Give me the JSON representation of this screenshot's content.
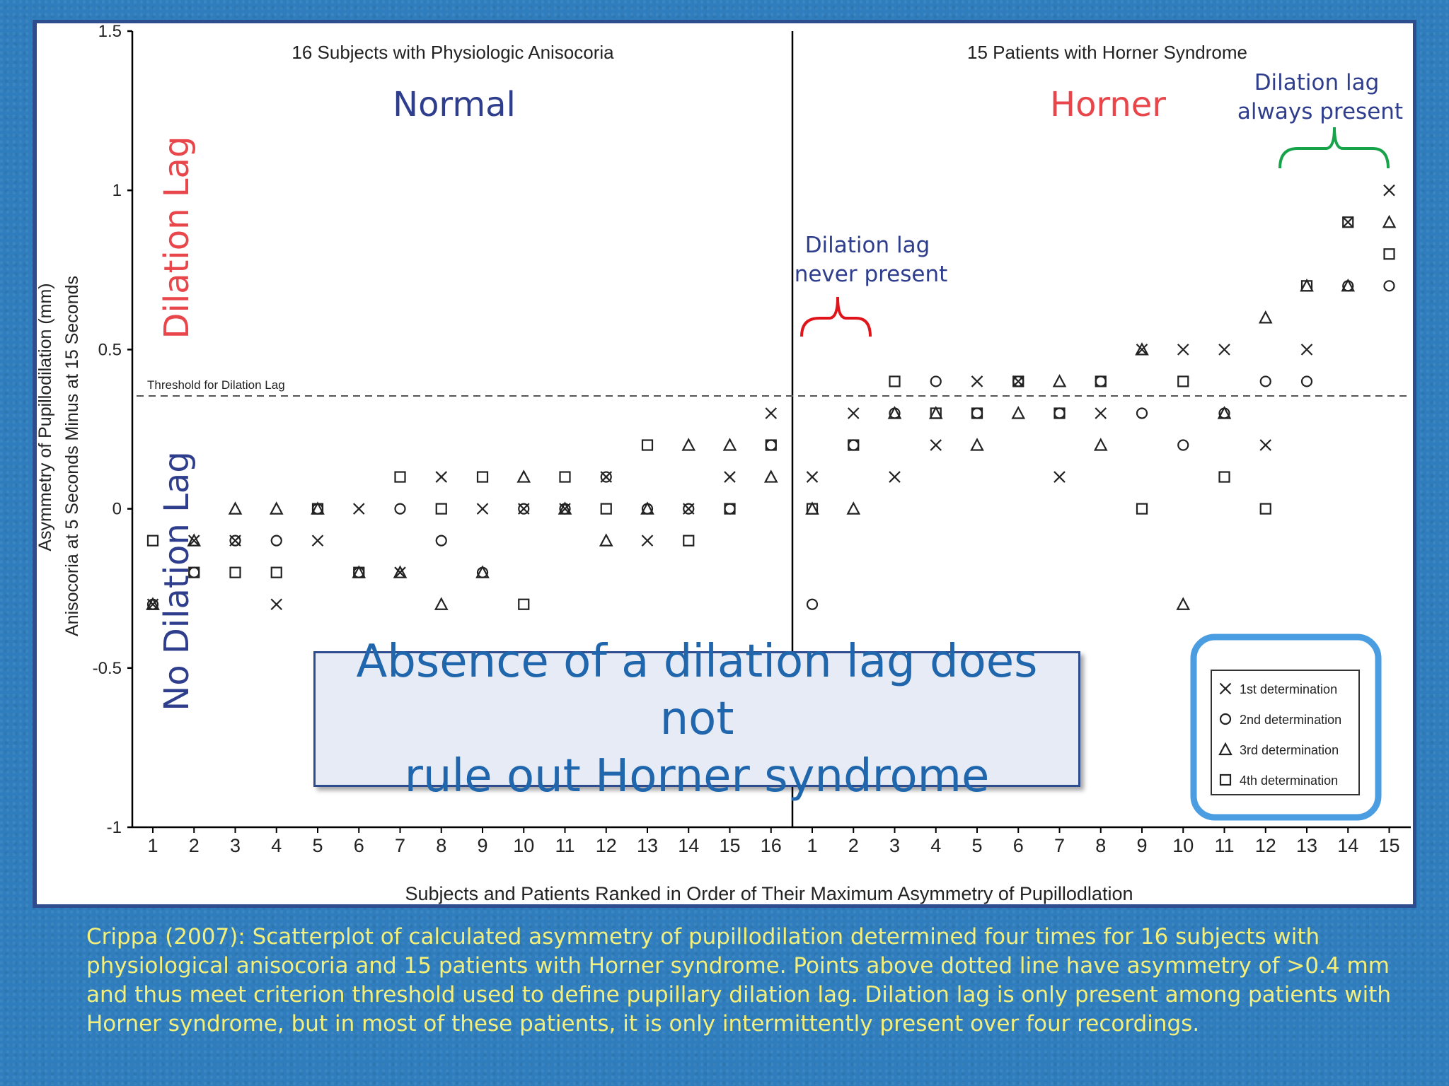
{
  "chart_data": {
    "type": "scatter",
    "ylabel_line1": "Asymmetry of Pupillodilation (mm)",
    "ylabel_line2": "Anisocoria at 5 Seconds Minus at 15 Seconds",
    "xlabel": "Subjects and Patients Ranked in Order of Their Maximum Asymmetry of Pupillodlation",
    "ylim": [
      -1,
      1.5
    ],
    "yticks": [
      "-1",
      "-0.5",
      "0",
      "0.5",
      "1",
      "1.5"
    ],
    "threshold": {
      "value": 0.35,
      "label": "Threshold for Dilation Lag"
    },
    "groups": [
      {
        "title": "16 Subjects with Physiologic Anisocoria",
        "tag": "Normal",
        "categories": [
          "1",
          "2",
          "3",
          "4",
          "5",
          "6",
          "7",
          "8",
          "9",
          "10",
          "11",
          "12",
          "13",
          "14",
          "15",
          "16"
        ],
        "series": [
          {
            "name": "1st determination",
            "marker": "x",
            "values": [
              -0.3,
              -0.1,
              -0.1,
              -0.3,
              -0.1,
              0,
              -0.2,
              0.1,
              0,
              0,
              0,
              0.1,
              -0.1,
              0,
              0.1,
              0.3
            ]
          },
          {
            "name": "2nd determination",
            "marker": "o",
            "values": [
              -0.3,
              -0.2,
              -0.1,
              -0.1,
              0,
              -0.2,
              0,
              -0.1,
              -0.2,
              0,
              0,
              0.1,
              0,
              0,
              0,
              0.2
            ]
          },
          {
            "name": "3rd determination",
            "marker": "triangle",
            "values": [
              -0.3,
              -0.1,
              0,
              0,
              0,
              -0.2,
              -0.2,
              -0.3,
              -0.2,
              0.1,
              0,
              -0.1,
              0,
              0.2,
              0.2,
              0.1
            ]
          },
          {
            "name": "4th determination",
            "marker": "square",
            "values": [
              -0.1,
              -0.2,
              -0.2,
              -0.2,
              0,
              -0.2,
              0.1,
              0,
              0.1,
              -0.3,
              0.1,
              0,
              0.2,
              -0.1,
              0,
              0.2
            ]
          }
        ]
      },
      {
        "title": "15 Patients with Horner Syndrome",
        "tag": "Horner",
        "categories": [
          "1",
          "2",
          "3",
          "4",
          "5",
          "6",
          "7",
          "8",
          "9",
          "10",
          "11",
          "12",
          "13",
          "14",
          "15"
        ],
        "series": [
          {
            "name": "1st determination",
            "marker": "x",
            "values": [
              0.1,
              0.3,
              0.1,
              0.2,
              0.4,
              0.4,
              0.1,
              0.3,
              0.5,
              0.5,
              0.5,
              0.2,
              0.5,
              0.9,
              1.0
            ]
          },
          {
            "name": "2nd determination",
            "marker": "o",
            "values": [
              -0.3,
              0.2,
              0.3,
              0.4,
              0.3,
              0.4,
              0.3,
              0.4,
              0.3,
              0.2,
              0.3,
              0.4,
              0.4,
              0.7,
              0.7
            ]
          },
          {
            "name": "3rd determination",
            "marker": "triangle",
            "values": [
              0,
              0,
              0.3,
              0.3,
              0.2,
              0.3,
              0.4,
              0.2,
              0.5,
              -0.3,
              0.3,
              0.6,
              0.7,
              0.7,
              0.9
            ]
          },
          {
            "name": "4th determination",
            "marker": "square",
            "values": [
              0,
              0.2,
              0.4,
              0.3,
              0.3,
              0.4,
              0.3,
              0.4,
              0,
              0.4,
              0.1,
              0,
              0.7,
              0.9,
              0.8
            ]
          }
        ]
      }
    ],
    "legend": {
      "position": "bottom-right",
      "entries": [
        "1st determination",
        "2nd determination",
        "3rd determination",
        "4th determination"
      ]
    }
  },
  "annotations": {
    "dilation_lag": "Dilation Lag",
    "no_dilation_lag": "No Dilation Lag",
    "never_line1": "Dilation lag",
    "never_line2": "never present",
    "always_line1": "Dilation lag",
    "always_line2": "always present",
    "overlay_line1": "Absence of a dilation lag does not",
    "overlay_line2": "rule out Horner syndrome"
  },
  "caption": "Crippa (2007): Scatterplot of calculated asymmetry of pupillodilation determined four times for 16 subjects with physiological anisocoria and 15 patients with Horner syndrome. Points above dotted line have asymmetry of >0.4 mm and thus meet criterion threshold used to define pupillary dilation lag. Dilation lag is only present among patients with Horner syndrome, but in most of these patients, it is only intermittently present over four recordings.",
  "colors": {
    "normal_tag": "#2e3d8c",
    "horner_tag": "#e8464a",
    "red_annotation": "#e8464a",
    "blue_annotation": "#2e3d8c",
    "never_brace": "#e0151b",
    "always_brace": "#17a34a",
    "legend_highlight": "#4a9de0",
    "caption": "#f3ef7a"
  }
}
